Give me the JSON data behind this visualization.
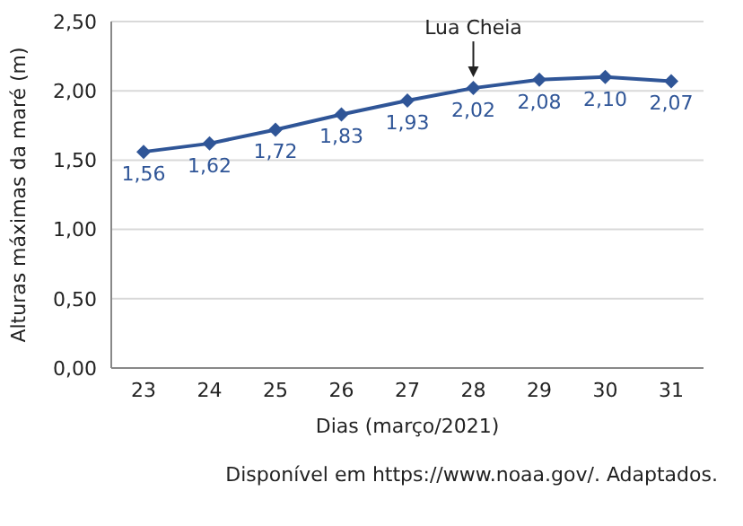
{
  "chart_data": {
    "type": "line",
    "xlabel": "Dias (março/2021)",
    "ylabel": "Alturas máximas da maré (m)",
    "categories": [
      "23",
      "24",
      "25",
      "26",
      "27",
      "28",
      "29",
      "30",
      "31"
    ],
    "series": [
      {
        "color": "#2f5597",
        "values": [
          1.56,
          1.62,
          1.72,
          1.83,
          1.93,
          2.02,
          2.08,
          2.1,
          2.07
        ],
        "value_labels": [
          "1,56",
          "1,62",
          "1,72",
          "1,83",
          "1,93",
          "2,02",
          "2,08",
          "2,10",
          "2,07"
        ]
      }
    ],
    "ylim": [
      0,
      2.5
    ],
    "yticks": [
      {
        "value": 0,
        "label": "0,00"
      },
      {
        "value": 0.5,
        "label": "0,50"
      },
      {
        "value": 1,
        "label": "1,00"
      },
      {
        "value": 1.5,
        "label": "1,50"
      },
      {
        "value": 2,
        "label": "2,00"
      },
      {
        "value": 2.5,
        "label": "2,50"
      }
    ],
    "grid": "y",
    "marker": "diamond",
    "line_style": "solid",
    "annotations": [
      {
        "text": "Lua Cheia",
        "x": "28",
        "y": 2.02
      },
      "Disponível em https://www.noaa.gov/. Adaptados."
    ]
  }
}
